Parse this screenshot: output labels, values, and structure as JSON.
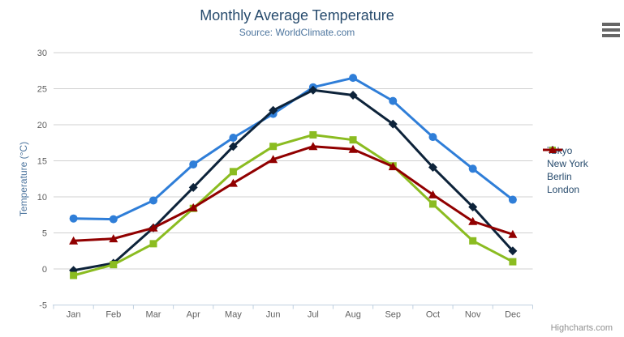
{
  "header": {
    "title": "Monthly Average Temperature",
    "subtitle": "Source: WorldClimate.com"
  },
  "credits": {
    "label": "Highcharts.com"
  },
  "menu": {
    "icon": "hamburger-menu-icon"
  },
  "colors": {
    "title_text": "#274b6d",
    "subtitle_text": "#4d759e",
    "axis_title_text": "#4d759e",
    "tick_label_text": "#606060",
    "legend_text": "#274b6d",
    "grid_line": "#d0d0d0",
    "axis_line": "#c0d0e0",
    "credits_text": "#909090",
    "menu_icon": "#666666"
  },
  "chart_data": {
    "type": "line",
    "title": "Monthly Average Temperature",
    "subtitle": "Source: WorldClimate.com",
    "xlabel": "",
    "ylabel": "Temperature (°C)",
    "ylim": [
      -5,
      30
    ],
    "ytick_step": 5,
    "grid": true,
    "legend_position": "right",
    "categories": [
      "Jan",
      "Feb",
      "Mar",
      "Apr",
      "May",
      "Jun",
      "Jul",
      "Aug",
      "Sep",
      "Oct",
      "Nov",
      "Dec"
    ],
    "series": [
      {
        "name": "Tokyo",
        "color": "#2f7ed8",
        "marker": "circle",
        "values": [
          7.0,
          6.9,
          9.5,
          14.5,
          18.2,
          21.5,
          25.2,
          26.5,
          23.3,
          18.3,
          13.9,
          9.6
        ]
      },
      {
        "name": "New York",
        "color": "#0d233a",
        "marker": "diamond",
        "values": [
          -0.2,
          0.8,
          5.7,
          11.3,
          17.0,
          22.0,
          24.8,
          24.1,
          20.1,
          14.1,
          8.6,
          2.5
        ]
      },
      {
        "name": "Berlin",
        "color": "#8bbc21",
        "marker": "square",
        "values": [
          -0.9,
          0.6,
          3.5,
          8.4,
          13.5,
          17.0,
          18.6,
          17.9,
          14.3,
          9.0,
          3.9,
          1.0
        ]
      },
      {
        "name": "London",
        "color": "#910000",
        "marker": "triangle",
        "values": [
          3.9,
          4.2,
          5.7,
          8.5,
          11.9,
          15.2,
          17.0,
          16.6,
          14.2,
          10.3,
          6.6,
          4.8
        ]
      }
    ]
  }
}
